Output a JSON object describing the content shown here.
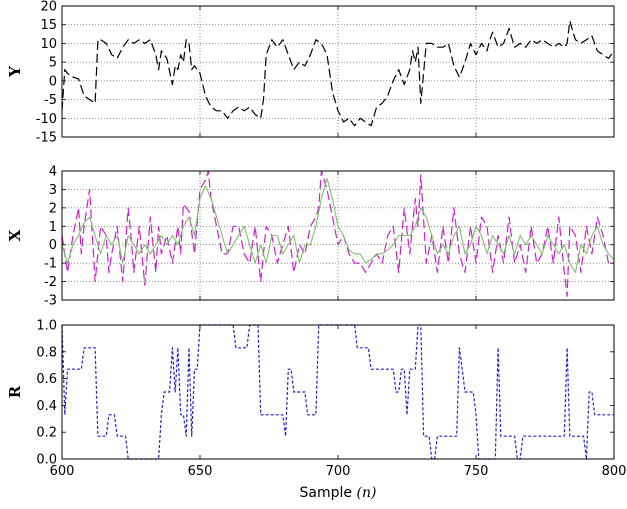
{
  "chart_data": [
    {
      "type": "line",
      "ylabel": "Y",
      "xlim": [
        600,
        800
      ],
      "ylim": [
        -15,
        20
      ],
      "yticks": [
        -15,
        -10,
        -5,
        0,
        5,
        10,
        15,
        20
      ],
      "xticks": [
        600,
        650,
        700,
        750,
        800
      ],
      "grid": true,
      "series": [
        {
          "style": "dashed",
          "color": "#000000",
          "x": [
            600,
            601,
            602,
            604,
            606,
            608,
            610,
            612,
            613,
            614,
            616,
            618,
            620,
            622,
            624,
            626,
            628,
            630,
            632,
            634,
            635,
            636,
            638,
            640,
            641,
            642,
            643,
            644,
            645,
            646,
            647,
            648,
            650,
            652,
            654,
            656,
            658,
            660,
            662,
            664,
            666,
            668,
            670,
            672,
            673,
            674,
            676,
            678,
            680,
            682,
            684,
            686,
            688,
            690,
            692,
            694,
            696,
            698,
            700,
            702,
            704,
            706,
            708,
            710,
            712,
            714,
            716,
            718,
            719,
            720,
            722,
            724,
            726,
            727,
            728,
            729,
            730,
            732,
            734,
            736,
            738,
            740,
            742,
            744,
            746,
            748,
            750,
            752,
            754,
            755,
            756,
            758,
            760,
            762,
            764,
            766,
            768,
            770,
            772,
            774,
            776,
            778,
            780,
            782,
            783,
            784,
            786,
            788,
            790,
            792,
            794,
            796,
            798,
            800
          ],
          "y": [
            -8,
            3,
            2,
            1,
            0.5,
            -4,
            -5,
            -6,
            11,
            11,
            10,
            7,
            6,
            9,
            11,
            10,
            11,
            10,
            11,
            7,
            3,
            8,
            6,
            -1,
            4,
            3,
            7,
            5,
            11,
            10,
            3,
            4,
            2,
            -4,
            -7,
            -8,
            -8,
            -10,
            -8,
            -7,
            -8,
            -7,
            -9,
            -10,
            -5,
            7,
            11,
            9,
            11,
            7,
            3,
            5,
            4,
            7,
            11,
            10,
            7,
            -3,
            -8,
            -11,
            -10,
            -12,
            -10,
            -11,
            -12,
            -7,
            -6,
            -4,
            -2,
            0,
            3,
            -1,
            3,
            8,
            5,
            9,
            -6,
            10,
            10,
            9,
            9,
            10,
            4,
            1,
            5,
            10,
            7,
            10,
            8,
            11,
            13,
            9,
            10,
            14,
            9,
            10,
            9,
            11,
            10,
            11,
            10,
            9,
            10,
            9,
            10,
            16,
            11,
            10,
            11,
            12,
            8,
            7,
            6,
            8
          ]
        }
      ]
    },
    {
      "type": "line",
      "ylabel": "X",
      "xlim": [
        600,
        800
      ],
      "ylim": [
        -3,
        4
      ],
      "yticks": [
        -3,
        -2,
        -1,
        0,
        1,
        2,
        3,
        4
      ],
      "xticks": [
        600,
        650,
        700,
        750,
        800
      ],
      "grid": true,
      "series": [
        {
          "style": "dashed",
          "color": "#cc22cc",
          "x": [
            600,
            602,
            604,
            606,
            607,
            608,
            610,
            611,
            612,
            614,
            616,
            617,
            618,
            620,
            622,
            624,
            625,
            626,
            628,
            630,
            632,
            634,
            635,
            636,
            638,
            640,
            642,
            643,
            644,
            646,
            648,
            650,
            652,
            653,
            654,
            656,
            658,
            660,
            662,
            664,
            666,
            668,
            670,
            672,
            674,
            676,
            678,
            680,
            682,
            684,
            686,
            688,
            690,
            692,
            693,
            694,
            696,
            698,
            700,
            702,
            704,
            706,
            708,
            710,
            712,
            714,
            716,
            718,
            720,
            722,
            724,
            726,
            728,
            729,
            730,
            732,
            734,
            736,
            738,
            740,
            742,
            744,
            746,
            748,
            750,
            752,
            754,
            756,
            758,
            760,
            762,
            764,
            766,
            768,
            770,
            772,
            774,
            776,
            778,
            780,
            782,
            783,
            784,
            786,
            788,
            790,
            792,
            794,
            796,
            798,
            800
          ],
          "y": [
            0.5,
            -1.5,
            0.5,
            2,
            -0.5,
            1,
            3,
            0.5,
            -2,
            1,
            0.5,
            -1.5,
            -0.5,
            1,
            -2,
            2,
            0.5,
            -1.5,
            1,
            -2.2,
            1.5,
            -1.5,
            1,
            -0.5,
            0.5,
            -1,
            1,
            -0.5,
            2.2,
            1.8,
            -0.5,
            3,
            3.5,
            4,
            2.5,
            1,
            -0.5,
            -0.5,
            1,
            1,
            -0.5,
            -1,
            1,
            -2,
            1,
            0.5,
            -1,
            0,
            1,
            -1.5,
            0,
            -0.5,
            1,
            1.5,
            2,
            4,
            3,
            1.5,
            0,
            0.5,
            -0.5,
            -1,
            -1,
            -1.5,
            -1,
            -0.5,
            -1,
            0.5,
            1,
            -1.5,
            2,
            -0.5,
            2.5,
            1,
            3.8,
            -1,
            0.5,
            -1.5,
            1,
            -1,
            2,
            -0.5,
            -1.5,
            1,
            -1,
            1.5,
            1,
            -1.5,
            0.5,
            -1,
            1.5,
            -1,
            0,
            -1.5,
            1,
            -1,
            -0.5,
            1,
            -1,
            1.5,
            -1.5,
            -2.8,
            1,
            0.5,
            -1.5,
            1,
            -0.5,
            1.5,
            0.5,
            -1,
            -1
          ]
        },
        {
          "style": "solid",
          "color": "#7fbf6f",
          "x": [
            600,
            602,
            604,
            606,
            608,
            610,
            612,
            614,
            616,
            618,
            620,
            622,
            624,
            626,
            628,
            630,
            632,
            634,
            636,
            638,
            640,
            642,
            644,
            646,
            648,
            650,
            652,
            654,
            656,
            658,
            660,
            662,
            664,
            666,
            668,
            670,
            672,
            674,
            676,
            678,
            680,
            682,
            684,
            686,
            688,
            690,
            692,
            694,
            696,
            698,
            700,
            702,
            704,
            706,
            708,
            710,
            712,
            714,
            716,
            718,
            720,
            722,
            724,
            726,
            728,
            730,
            732,
            734,
            736,
            738,
            740,
            742,
            744,
            746,
            748,
            750,
            752,
            754,
            756,
            758,
            760,
            762,
            764,
            766,
            768,
            770,
            772,
            774,
            776,
            778,
            780,
            782,
            784,
            786,
            788,
            790,
            792,
            794,
            796,
            798,
            800
          ],
          "y": [
            0,
            -1,
            0,
            0.5,
            1.2,
            1.5,
            0.5,
            -0.5,
            0.5,
            0,
            0.5,
            -1,
            0.5,
            0,
            -0.5,
            0,
            -0.5,
            0,
            0.5,
            0,
            0.5,
            0,
            1,
            1.5,
            0.5,
            2.5,
            3.2,
            2.5,
            1.5,
            0.5,
            -0.5,
            0,
            0.5,
            1,
            0,
            -1,
            0,
            -1,
            0.5,
            0.5,
            -0.5,
            0,
            0.5,
            -1,
            0,
            0,
            1,
            2.5,
            3.6,
            2.5,
            1,
            0.5,
            -0.3,
            -0.5,
            -0.5,
            -1,
            -0.8,
            -0.5,
            -0.5,
            -0.3,
            0,
            0.5,
            0.5,
            0.5,
            1,
            2,
            1.5,
            0.5,
            -0.5,
            0,
            -0.5,
            0.5,
            1,
            -0.5,
            0,
            1,
            0.5,
            -0.5,
            0.5,
            0,
            -0.5,
            0.5,
            -0.5,
            0.5,
            0,
            0.5,
            0,
            -0.5,
            0.5,
            0,
            -0.5,
            0,
            -1,
            -1.5,
            0,
            -0.5,
            0.5,
            1,
            0,
            -0.5,
            -0.8
          ]
        }
      ]
    },
    {
      "type": "line",
      "ylabel": "R",
      "xlabel": "Sample",
      "xlabel_var": "(n)",
      "xlim": [
        600,
        800
      ],
      "ylim": [
        0.0,
        1.0
      ],
      "yticks": [
        0.0,
        0.2,
        0.4,
        0.6,
        0.8,
        1.0
      ],
      "xticks": [
        600,
        650,
        700,
        750,
        800
      ],
      "grid": false,
      "series": [
        {
          "style": "dotted",
          "color": "#2222cc",
          "x": [
            600,
            601,
            602,
            603,
            604,
            605,
            606,
            607,
            608,
            609,
            610,
            611,
            612,
            613,
            614,
            615,
            616,
            617,
            618,
            619,
            620,
            621,
            622,
            623,
            624,
            625,
            626,
            627,
            628,
            629,
            630,
            631,
            632,
            633,
            634,
            635,
            636,
            637,
            638,
            639,
            640,
            641,
            642,
            643,
            644,
            645,
            646,
            647,
            648,
            649,
            650,
            651,
            652,
            653,
            654,
            655,
            656,
            657,
            658,
            659,
            660,
            661,
            662,
            663,
            664,
            665,
            666,
            667,
            668,
            669,
            670,
            671,
            672,
            673,
            674,
            675,
            676,
            677,
            678,
            679,
            680,
            681,
            682,
            683,
            684,
            685,
            686,
            687,
            688,
            689,
            690,
            691,
            692,
            693,
            694,
            695,
            696,
            697,
            698,
            699,
            700,
            701,
            702,
            703,
            704,
            705,
            706,
            707,
            708,
            709,
            710,
            711,
            712,
            713,
            714,
            715,
            716,
            717,
            718,
            719,
            720,
            721,
            722,
            723,
            724,
            725,
            726,
            727,
            728,
            729,
            730,
            731,
            732,
            733,
            734,
            735,
            736,
            737,
            738,
            739,
            740,
            741,
            742,
            743,
            744,
            745,
            746,
            747,
            748,
            749,
            750,
            751,
            752,
            753,
            754,
            755,
            756,
            757,
            758,
            759,
            760,
            761,
            762,
            763,
            764,
            765,
            766,
            767,
            768,
            769,
            770,
            771,
            772,
            773,
            774,
            775,
            776,
            777,
            778,
            779,
            780,
            781,
            782,
            783,
            784,
            785,
            786,
            787,
            788,
            789,
            790,
            791,
            792,
            793,
            794,
            795,
            796,
            797,
            798,
            799,
            800
          ],
          "y": [
            1,
            0.33,
            0.67,
            0.67,
            0.67,
            0.67,
            0.67,
            0.67,
            0.83,
            0.83,
            0.83,
            0.83,
            0.83,
            0.17,
            0.17,
            0.17,
            0.17,
            0.33,
            0.33,
            0.33,
            0.17,
            0.17,
            0.17,
            0.17,
            0.0,
            0.0,
            0.0,
            0.0,
            0.0,
            0.0,
            0.0,
            0.0,
            0.0,
            0.0,
            0.0,
            0.0,
            0.33,
            0.5,
            0.5,
            0.5,
            0.83,
            0.5,
            0.83,
            0.33,
            0.33,
            0.17,
            0.83,
            0.17,
            0.67,
            0.67,
            1,
            1,
            1,
            1,
            1,
            1,
            1,
            1,
            1,
            1,
            1,
            1,
            1,
            0.83,
            0.83,
            0.83,
            0.83,
            0.83,
            1,
            1,
            1,
            1,
            0.33,
            0.33,
            0.33,
            0.33,
            0.33,
            0.33,
            0.33,
            0.33,
            0.33,
            0.17,
            0.67,
            0.67,
            0.5,
            0.5,
            0.5,
            0.5,
            0.5,
            0.33,
            0.33,
            0.33,
            0.33,
            1,
            1,
            1,
            1,
            1,
            1,
            1,
            1,
            1,
            1,
            1,
            1,
            1,
            1,
            0.83,
            0.83,
            0.83,
            0.83,
            0.83,
            0.67,
            0.67,
            0.67,
            0.67,
            0.67,
            0.67,
            0.67,
            0.67,
            0.67,
            0.5,
            0.5,
            0.67,
            0.67,
            0.33,
            0.67,
            0.67,
            0.67,
            1,
            1,
            0.17,
            0.17,
            0.17,
            0.0,
            0.0,
            0.17,
            0.17,
            0.17,
            0.17,
            0.17,
            0.17,
            0.17,
            0.17,
            0.83,
            0.67,
            0.5,
            0.5,
            0.5,
            0.5,
            0.33,
            0.0,
            0.0,
            0.0,
            0.0,
            0.0,
            0.0,
            0.0,
            0.83,
            0.17,
            0.17,
            0.17,
            0.17,
            0.17,
            0.17,
            0.0,
            0.0,
            0.17,
            0.17,
            0.17,
            0.17,
            0.17,
            0.17,
            0.17,
            0.17,
            0.17,
            0.17,
            0.17,
            0.17,
            0.17,
            0.17,
            0.17,
            0.17,
            0.83,
            0.17,
            0.17,
            0.17,
            0.17,
            0.17,
            0.17,
            0.0,
            0.5,
            0.5,
            0.33,
            0.33,
            0.33,
            0.33,
            0.33,
            0.33,
            0.33,
            0.33
          ]
        }
      ]
    }
  ]
}
